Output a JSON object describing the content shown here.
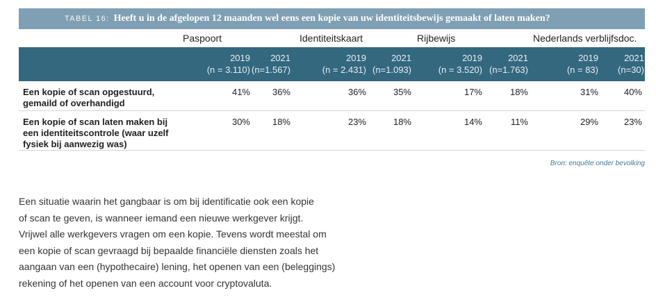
{
  "table": {
    "label": "TABEL 16:",
    "title": "Heeft u in de afgelopen 12 maanden wel eens een kopie van uw identiteitsbewijs gemaakt of laten maken?",
    "groups": [
      "Paspoort",
      "Identiteitskaart",
      "Rijbewijs",
      "Nederlands verblijfsdoc."
    ],
    "years": [
      {
        "year": "2019",
        "n": "(n = 3.110)"
      },
      {
        "year": "2021",
        "n": "(n=1.567)"
      },
      {
        "year": "2019",
        "n": "(n = 2.431)"
      },
      {
        "year": "2021",
        "n": "(n=1.093)"
      },
      {
        "year": "2019",
        "n": "(n = 3.520)"
      },
      {
        "year": "2021",
        "n": "(n=1.763)"
      },
      {
        "year": "2019",
        "n": "(n = 83)"
      },
      {
        "year": "2021",
        "n": "(n=30)"
      }
    ],
    "rows": [
      {
        "label_lines": [
          "Een kopie of scan opgestuurd,",
          "gemaild of overhandigd"
        ],
        "values": [
          "41%",
          "36%",
          "36%",
          "35%",
          "17%",
          "18%",
          "31%",
          "40%"
        ]
      },
      {
        "label_lines": [
          "Een kopie of scan laten maken bij",
          "een identiteitscontrole (waar uzelf",
          "fysiek bij aanwezig was)"
        ],
        "values": [
          "30%",
          "18%",
          "23%",
          "18%",
          "14%",
          "11%",
          "29%",
          "23%"
        ]
      }
    ],
    "source": "Bron: enquête onder bevolking"
  },
  "paragraph_lines": [
    "Een situatie waarin het gangbaar is om bij identificatie ook een kopie",
    "of scan te geven, is wanneer iemand een nieuwe werkgever krijgt.",
    "Vrijwel alle werkgevers vragen om een kopie. Tevens wordt meestal om",
    "een kopie of scan gevraagd bij bepaalde financiële diensten zoals het",
    "aangaan van een (hypothecaire) lening, het openen van een (beleggings)",
    "rekening of het openen van een account voor cryptovaluta."
  ],
  "colors": {
    "title_bar": "#7fa0b4",
    "header_band": "#33687f",
    "source_text": "#3f7b99"
  }
}
